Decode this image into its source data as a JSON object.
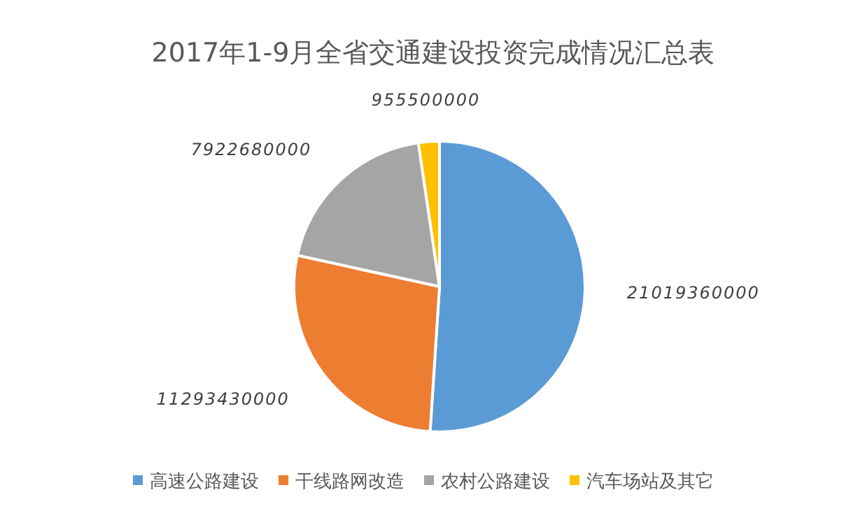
{
  "chart_data": {
    "type": "pie",
    "title": "2017年1-9月全省交通建设投资完成情况汇总表",
    "categories": [
      "高速公路建设",
      "干线路网改造",
      "农村公路建设",
      "汽车场站及其它"
    ],
    "values": [
      21019360000,
      11293430000,
      7922680000,
      955500000
    ],
    "colors": [
      "#5b9bd5",
      "#ed7d31",
      "#a5a5a5",
      "#ffc000"
    ],
    "data_labels": true,
    "legend": "bottom"
  }
}
